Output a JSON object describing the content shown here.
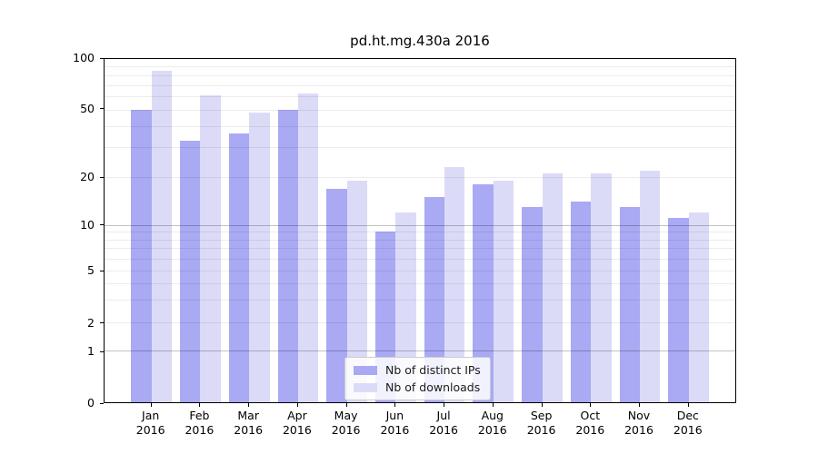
{
  "chart_data": {
    "type": "bar",
    "title": "pd.ht.mg.430a 2016",
    "categories": [
      "Jan",
      "Feb",
      "Mar",
      "Apr",
      "May",
      "Jun",
      "Jul",
      "Aug",
      "Sep",
      "Oct",
      "Nov",
      "Dec"
    ],
    "x_year_label": "2016",
    "series": [
      {
        "key": "ips",
        "name": "Nb of distinct IPs",
        "color": "#a9a9f4",
        "values": [
          50,
          33,
          36,
          50,
          17,
          9,
          15,
          18,
          13,
          14,
          13,
          11
        ]
      },
      {
        "key": "downloads",
        "name": "Nb of downloads",
        "color": "#dbdbf8",
        "values": [
          85,
          61,
          48,
          62,
          19,
          12,
          23,
          19,
          21,
          21,
          22,
          12
        ]
      }
    ],
    "y_ticks": [
      100,
      50,
      20,
      10,
      5,
      2,
      1,
      0
    ],
    "ylim": [
      0,
      100
    ],
    "y_scale": "log-with-zero",
    "grid": "horizontal, log minor + major lines",
    "legend_position": "inside lower center"
  }
}
